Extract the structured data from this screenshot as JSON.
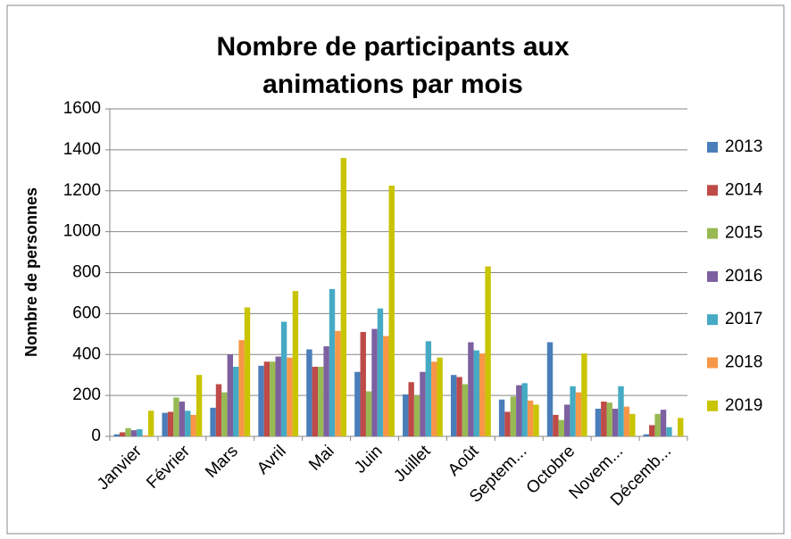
{
  "chart_data": {
    "type": "bar",
    "title": "Nombre de participants aux animations par mois",
    "y_label": "Nombre de personnes",
    "categories": [
      "Janvier",
      "Février",
      "Mars",
      "Avril",
      "Mai",
      "Juin",
      "Juillet",
      "Août",
      "Septem...",
      "Octobre",
      "Novem...",
      "Décemb..."
    ],
    "series": [
      {
        "name": "2013",
        "color": "#4a7ebb",
        "values": [
          10,
          115,
          140,
          345,
          425,
          315,
          205,
          300,
          180,
          460,
          135,
          10
        ]
      },
      {
        "name": "2014",
        "color": "#be4b48",
        "values": [
          20,
          120,
          255,
          365,
          340,
          510,
          265,
          290,
          120,
          105,
          170,
          55
        ]
      },
      {
        "name": "2015",
        "color": "#98b954",
        "values": [
          40,
          190,
          215,
          365,
          340,
          220,
          200,
          255,
          195,
          80,
          165,
          110
        ]
      },
      {
        "name": "2016",
        "color": "#7d60a0",
        "values": [
          30,
          170,
          400,
          390,
          440,
          525,
          315,
          460,
          250,
          155,
          135,
          130
        ]
      },
      {
        "name": "2017",
        "color": "#46aac4",
        "values": [
          35,
          125,
          340,
          560,
          720,
          625,
          465,
          420,
          260,
          245,
          245,
          45
        ]
      },
      {
        "name": "2018",
        "color": "#f79646",
        "values": [
          5,
          105,
          470,
          385,
          515,
          490,
          365,
          405,
          175,
          215,
          145,
          0
        ]
      },
      {
        "name": "2019",
        "color": "#c8c400",
        "values": [
          125,
          300,
          630,
          710,
          1360,
          1225,
          385,
          830,
          155,
          405,
          110,
          90
        ]
      }
    ],
    "ylim": [
      0,
      1600
    ],
    "yticks": [
      0,
      200,
      400,
      600,
      800,
      1000,
      1200,
      1400,
      1600
    ],
    "grid": true,
    "legend": "right"
  }
}
